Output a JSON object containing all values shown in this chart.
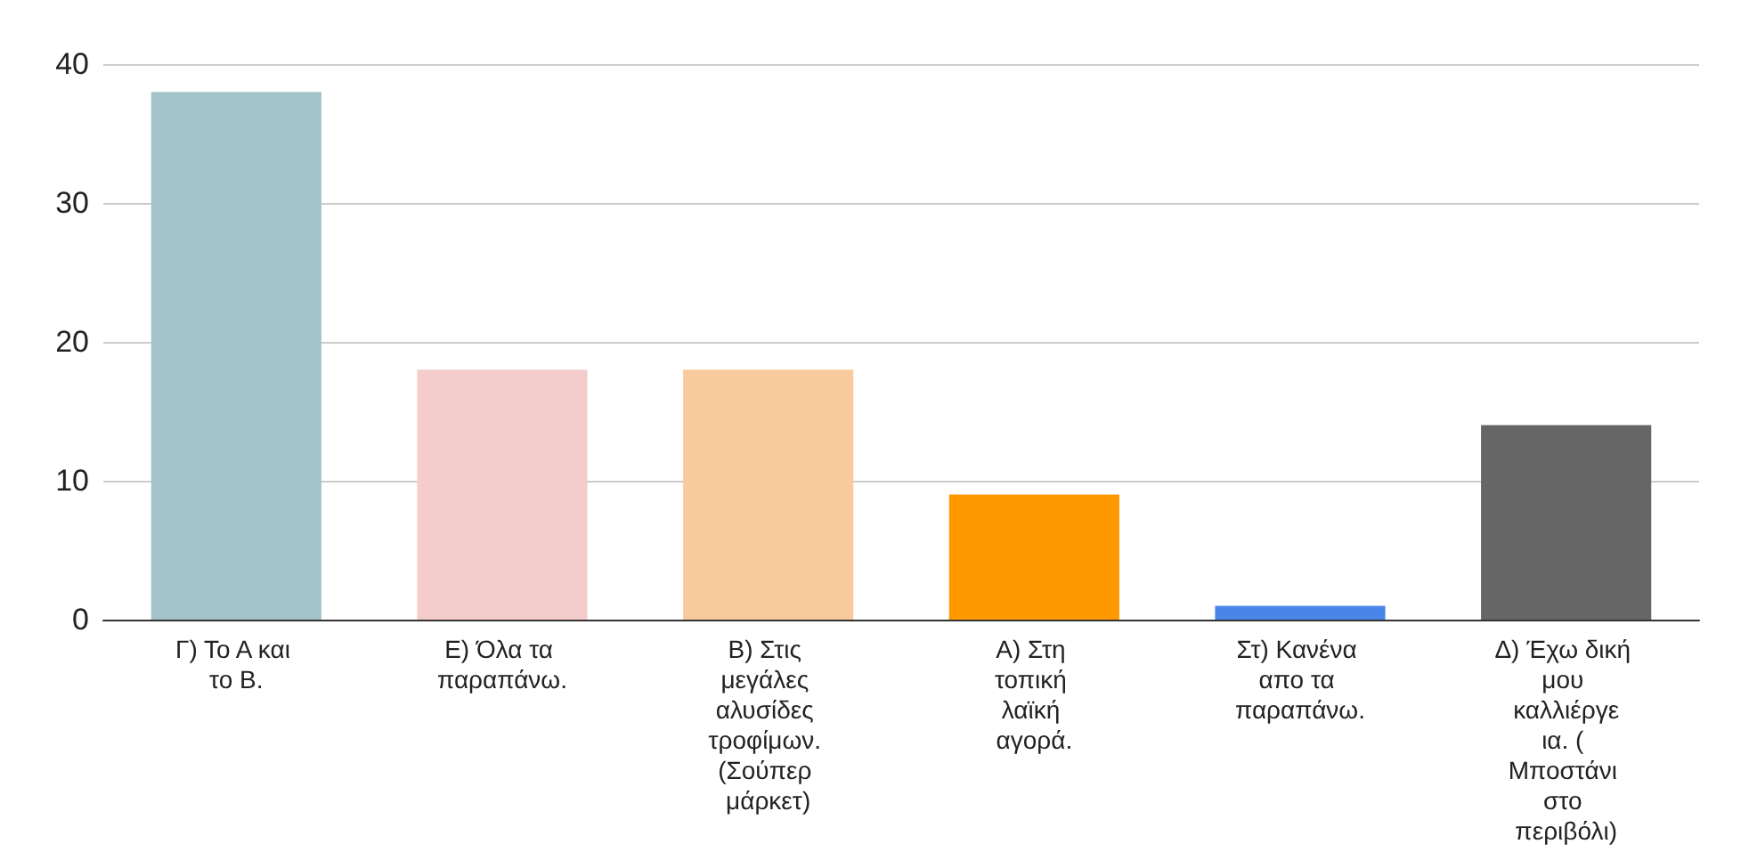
{
  "chart_data": {
    "type": "bar",
    "categories": [
      "Γ) Το Α και το Β.",
      "Ε) Όλα τα παραπάνω.",
      "Β) Στις μεγάλες αλυσίδες τροφίμων. (Σούπερ μάρκετ)",
      "Α) Στη τοπική λαϊκή αγορά.",
      "Στ) Κανένα απο τα παραπάνω.",
      "Δ) Έχω δική μου καλλιέργεια. ( Μποστάνι στο περιβόλι)"
    ],
    "values": [
      38,
      18,
      18,
      9,
      1,
      14
    ],
    "colors": [
      "#a2c4c9",
      "#f4cccc",
      "#f9cb9c",
      "#ff9900",
      "#4a86e8",
      "#666666"
    ],
    "ylim": [
      0,
      40
    ],
    "yticks": [
      0,
      10,
      20,
      30,
      40
    ],
    "grid": "y"
  }
}
